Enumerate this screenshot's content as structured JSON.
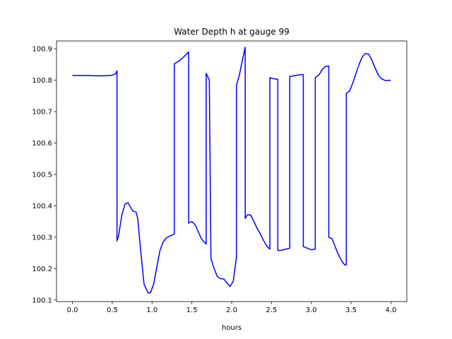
{
  "chart_data": {
    "type": "line",
    "title": "Water Depth h at gauge 99",
    "xlabel": "hours",
    "ylabel": "",
    "xlim": [
      -0.2,
      4.2
    ],
    "ylim": [
      100.095,
      100.925
    ],
    "xticks": [
      0.0,
      0.5,
      1.0,
      1.5,
      2.0,
      2.5,
      3.0,
      3.5,
      4.0
    ],
    "xtick_labels": [
      "0.0",
      "0.5",
      "1.0",
      "1.5",
      "2.0",
      "2.5",
      "3.0",
      "3.5",
      "4.0"
    ],
    "yticks": [
      100.1,
      100.2,
      100.3,
      100.4,
      100.5,
      100.6,
      100.7,
      100.8,
      100.9
    ],
    "ytick_labels": [
      "100.1",
      "100.2",
      "100.3",
      "100.4",
      "100.5",
      "100.6",
      "100.7",
      "100.8",
      "100.9"
    ],
    "grid": false,
    "legend": "none",
    "series": [
      {
        "color": "#0000ff",
        "x": [
          0.0,
          0.1,
          0.2,
          0.3,
          0.4,
          0.5,
          0.54,
          0.56,
          0.56,
          0.58,
          0.62,
          0.66,
          0.7,
          0.72,
          0.76,
          0.8,
          0.82,
          0.86,
          0.9,
          0.95,
          0.98,
          1.02,
          1.06,
          1.1,
          1.14,
          1.18,
          1.22,
          1.28,
          1.28,
          1.32,
          1.36,
          1.4,
          1.46,
          1.46,
          1.5,
          1.54,
          1.58,
          1.62,
          1.68,
          1.68,
          1.72,
          1.72,
          1.74,
          1.78,
          1.82,
          1.86,
          1.9,
          1.94,
          1.98,
          2.02,
          2.06,
          2.06,
          2.1,
          2.14,
          2.17,
          2.17,
          2.2,
          2.24,
          2.28,
          2.32,
          2.36,
          2.4,
          2.44,
          2.48,
          2.48,
          2.52,
          2.58,
          2.58,
          2.62,
          2.68,
          2.73,
          2.73,
          2.78,
          2.84,
          2.9,
          2.9,
          2.94,
          3.0,
          3.05,
          3.05,
          3.1,
          3.14,
          3.18,
          3.22,
          3.22,
          3.26,
          3.3,
          3.34,
          3.38,
          3.42,
          3.44,
          3.44,
          3.48,
          3.52,
          3.56,
          3.6,
          3.64,
          3.68,
          3.72,
          3.76,
          3.8,
          3.84,
          3.88,
          3.92,
          3.96,
          4.0
        ],
        "values": [
          100.815,
          100.815,
          100.815,
          100.814,
          100.814,
          100.816,
          100.82,
          100.83,
          100.288,
          100.305,
          100.37,
          100.405,
          100.41,
          100.4,
          100.383,
          100.38,
          100.36,
          100.25,
          100.15,
          100.122,
          100.123,
          100.15,
          100.205,
          100.258,
          100.285,
          100.298,
          100.303,
          100.31,
          100.852,
          100.858,
          100.865,
          100.875,
          100.89,
          100.345,
          100.35,
          100.34,
          100.318,
          100.295,
          100.278,
          100.822,
          100.8,
          100.782,
          100.232,
          100.2,
          100.175,
          100.168,
          100.167,
          100.155,
          100.143,
          100.16,
          100.235,
          100.782,
          100.82,
          100.87,
          100.905,
          100.36,
          100.372,
          100.37,
          100.35,
          100.328,
          100.31,
          100.29,
          100.272,
          100.262,
          100.808,
          100.805,
          100.803,
          100.258,
          100.258,
          100.262,
          100.265,
          100.812,
          100.814,
          100.817,
          100.818,
          100.27,
          100.266,
          100.26,
          100.262,
          100.808,
          100.818,
          100.835,
          100.844,
          100.845,
          100.3,
          100.295,
          100.27,
          100.245,
          100.225,
          100.212,
          100.212,
          100.758,
          100.765,
          100.79,
          100.82,
          100.85,
          100.874,
          100.885,
          100.883,
          100.865,
          100.84,
          100.818,
          100.805,
          100.8,
          100.799,
          100.8
        ]
      }
    ]
  }
}
